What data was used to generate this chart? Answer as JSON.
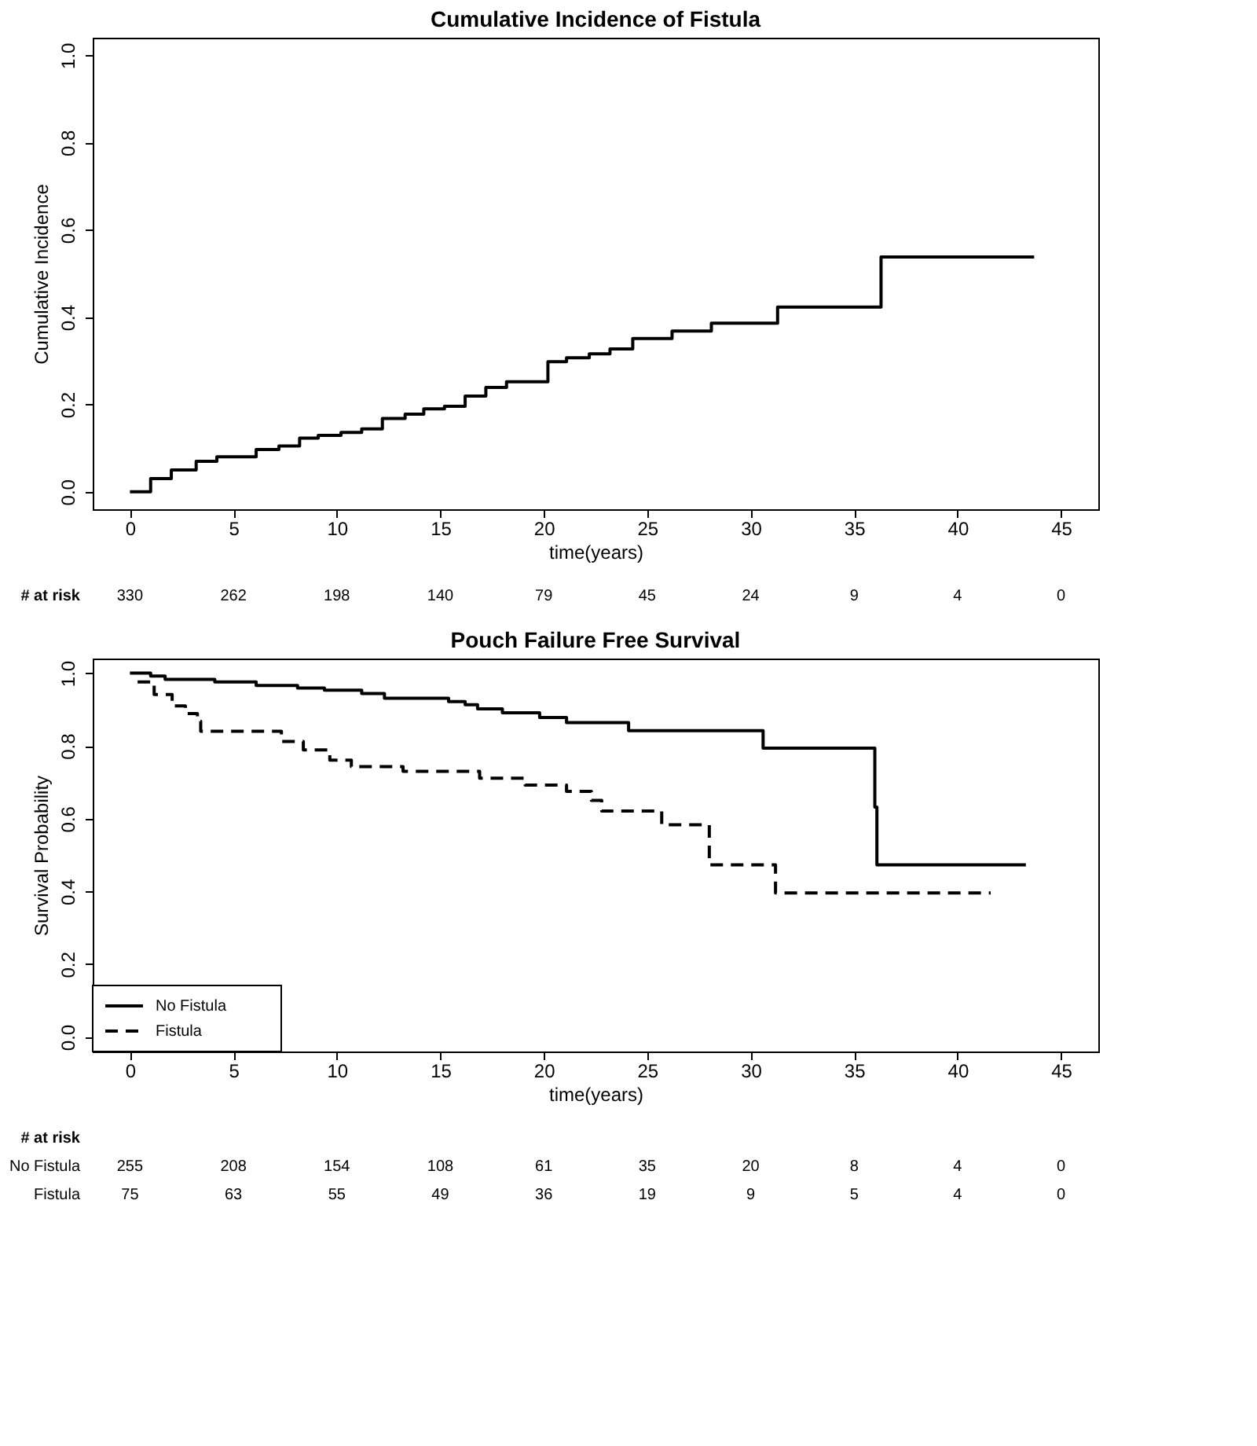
{
  "chart_data": [
    {
      "type": "step",
      "title": "Cumulative Incidence of Fistula",
      "xlabel": "time(years)",
      "ylabel": "Cumulative Incidence",
      "color": "#000000",
      "line_style": "solid",
      "x": [
        0,
        1.0,
        2.0,
        3.2,
        4.2,
        6.1,
        7.2,
        8.2,
        9.1,
        10.2,
        11.2,
        12.2,
        13.3,
        14.2,
        15.2,
        16.2,
        17.2,
        18.2,
        20.2,
        21.1,
        22.2,
        23.2,
        24.3,
        26.2,
        28.1,
        31.3,
        36.3,
        43.7
      ],
      "values": [
        0,
        0.03,
        0.05,
        0.07,
        0.08,
        0.097,
        0.105,
        0.123,
        0.129,
        0.136,
        0.144,
        0.168,
        0.178,
        0.19,
        0.196,
        0.219,
        0.239,
        0.252,
        0.298,
        0.307,
        0.316,
        0.327,
        0.351,
        0.368,
        0.386,
        0.423,
        0.538,
        0.538
      ],
      "xlim": [
        -1.8,
        46.8
      ],
      "xticks": [
        0,
        5,
        10,
        15,
        20,
        25,
        30,
        35,
        40,
        45
      ],
      "ylim": [
        -0.04,
        1.04
      ],
      "yticks": [
        {
          "value": 0,
          "label": "0.0"
        },
        {
          "value": 0.2,
          "label": "0.2"
        },
        {
          "value": 0.4,
          "label": "0.4"
        },
        {
          "value": 0.6,
          "label": "0.6"
        },
        {
          "value": 0.8,
          "label": "0.8"
        },
        {
          "value": 1,
          "label": "1.0"
        }
      ],
      "grid": false,
      "legend": false,
      "annotations": [
        "# at risk",
        "330",
        "262",
        "198",
        "140",
        "79",
        "45",
        "24",
        "9",
        "4",
        "0"
      ]
    },
    {
      "type": "step",
      "title": "Pouch Failure Free Survival",
      "xlabel": "time(years)",
      "ylabel": "Survival Probability",
      "series": [
        {
          "name": "No Fistula",
          "color": "#000000",
          "line_style": "solid",
          "x": [
            0,
            1.0,
            1.7,
            4.1,
            6.1,
            8.1,
            9.4,
            11.2,
            12.3,
            15.4,
            16.2,
            16.8,
            18.0,
            19.8,
            21.1,
            24.1,
            30.6,
            36.0,
            36.1,
            43.3
          ],
          "values": [
            1.0,
            0.992,
            0.983,
            0.976,
            0.966,
            0.959,
            0.953,
            0.944,
            0.931,
            0.922,
            0.913,
            0.902,
            0.891,
            0.878,
            0.864,
            0.842,
            0.794,
            0.632,
            0.473,
            0.473
          ]
        },
        {
          "name": "Fistula",
          "color": "#000000",
          "line_style": "dashed",
          "x": [
            0.37,
            1.17,
            2.04,
            2.68,
            3.26,
            3.42,
            7.32,
            8.38,
            9.66,
            10.7,
            13.2,
            16.9,
            19.1,
            21.1,
            22.3,
            22.8,
            25.7,
            28.0,
            31.2,
            41.6
          ],
          "values": [
            0.976,
            0.941,
            0.91,
            0.889,
            0.868,
            0.84,
            0.812,
            0.789,
            0.761,
            0.743,
            0.73,
            0.711,
            0.692,
            0.675,
            0.65,
            0.621,
            0.583,
            0.473,
            0.396,
            0.396
          ]
        }
      ],
      "xlim": [
        -1.8,
        46.8
      ],
      "xticks": [
        0,
        5,
        10,
        15,
        20,
        25,
        30,
        35,
        40,
        45
      ],
      "ylim": [
        -0.04,
        1.04
      ],
      "yticks": [
        {
          "value": 0,
          "label": "0.0"
        },
        {
          "value": 0.2,
          "label": "0.2"
        },
        {
          "value": 0.4,
          "label": "0.4"
        },
        {
          "value": 0.6,
          "label": "0.6"
        },
        {
          "value": 0.8,
          "label": "0.8"
        },
        {
          "value": 1,
          "label": "1.0"
        }
      ],
      "grid": false,
      "legend": "bottom left",
      "annotations": [
        "# at risk",
        "No Fistula",
        "255",
        "208",
        "154",
        "108",
        "61",
        "35",
        "20",
        "8",
        "4",
        "0",
        "Fistula",
        "75",
        "63",
        "55",
        "49",
        "36",
        "19",
        "9",
        "5",
        "4",
        "0"
      ]
    }
  ]
}
